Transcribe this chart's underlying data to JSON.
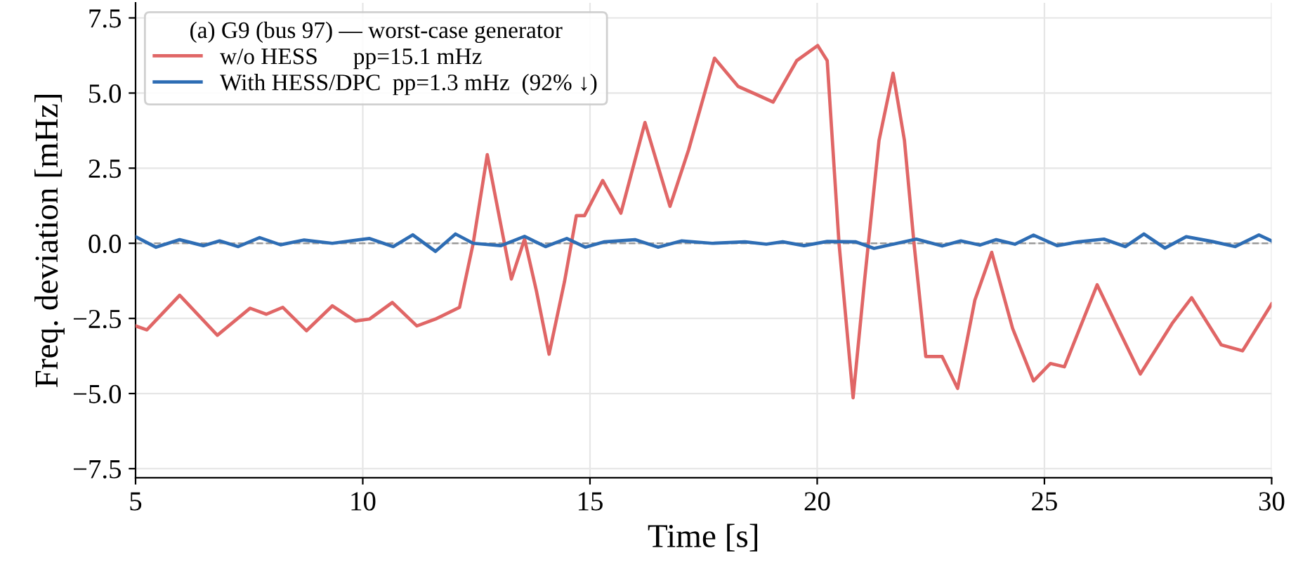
{
  "chart_data": {
    "type": "line",
    "xlabel": "Time [s]",
    "ylabel": "Freq. deviation [mHz]",
    "legend_title": "(a) G9 (bus 97) — worst-case generator",
    "xlim": [
      5,
      30
    ],
    "xticks": [
      5,
      10,
      15,
      20,
      25,
      30
    ],
    "ylim": [
      -7.8,
      8.0
    ],
    "yticks": [
      {
        "value": -7.5,
        "label": "−7.5"
      },
      {
        "value": -5,
        "label": "−5.0"
      },
      {
        "value": -2.5,
        "label": "−2.5"
      },
      {
        "value": 0,
        "label": "0.0"
      },
      {
        "value": 2.5,
        "label": "2.5"
      },
      {
        "value": 5,
        "label": "5.0"
      },
      {
        "value": 7.5,
        "label": "7.5"
      }
    ],
    "grid": true,
    "legend": "top left",
    "line_style": "solid",
    "marker": "none",
    "ref_lines": [
      {
        "axis": "y",
        "value": 0,
        "label": null,
        "color": "#999999",
        "line_style": "dashed"
      }
    ],
    "series": [
      {
        "name": "w/o HESS      pp=15.1 mHz",
        "color": "#e06666",
        "x": [
          5.0,
          5.25,
          5.97,
          6.8,
          7.52,
          7.88,
          8.24,
          8.76,
          9.33,
          9.84,
          10.15,
          10.65,
          11.19,
          11.6,
          12.13,
          12.43,
          12.74,
          13.04,
          13.27,
          13.56,
          13.82,
          14.1,
          14.44,
          14.7,
          14.88,
          15.28,
          15.68,
          16.21,
          16.76,
          17.17,
          17.74,
          18.26,
          18.62,
          19.03,
          19.55,
          20.01,
          20.22,
          20.48,
          20.79,
          21.04,
          21.36,
          21.67,
          21.92,
          22.13,
          22.39,
          22.75,
          23.09,
          23.47,
          23.84,
          24.3,
          24.76,
          25.13,
          25.44,
          26.16,
          26.62,
          27.11,
          27.81,
          28.24,
          28.89,
          29.36,
          30.0
        ],
        "values": [
          -2.75,
          -2.88,
          -1.73,
          -3.06,
          -2.16,
          -2.36,
          -2.13,
          -2.91,
          -2.08,
          -2.59,
          -2.52,
          -1.97,
          -2.75,
          -2.52,
          -2.13,
          0.0,
          2.95,
          0.6,
          -1.19,
          0.14,
          -1.58,
          -3.69,
          -1.27,
          0.92,
          0.92,
          2.09,
          1.0,
          4.02,
          1.23,
          3.11,
          6.16,
          5.22,
          4.98,
          4.7,
          6.08,
          6.58,
          6.08,
          0.0,
          -5.14,
          -1.27,
          3.42,
          5.66,
          3.42,
          0.0,
          -3.77,
          -3.77,
          -4.83,
          -1.89,
          -0.3,
          -2.83,
          -4.58,
          -4.0,
          -4.11,
          -1.38,
          -2.83,
          -4.35,
          -2.67,
          -1.81,
          -3.38,
          -3.58,
          -2.02
        ]
      },
      {
        "name": "With HESS/DPC  pp=1.3 mHz  (92% ↓)",
        "color": "#2e6db4",
        "x": [
          5.0,
          5.45,
          5.97,
          6.49,
          6.85,
          7.26,
          7.73,
          8.19,
          8.71,
          9.33,
          10.15,
          10.67,
          11.1,
          11.6,
          12.04,
          12.43,
          13.04,
          13.56,
          14.02,
          14.49,
          14.9,
          15.32,
          15.99,
          16.5,
          17.02,
          17.69,
          18.41,
          18.88,
          19.24,
          19.71,
          20.22,
          20.84,
          21.25,
          22.18,
          22.75,
          23.16,
          23.58,
          23.94,
          24.35,
          24.76,
          25.28,
          25.75,
          26.31,
          26.78,
          27.19,
          27.65,
          28.12,
          28.69,
          29.2,
          29.72,
          30.0
        ],
        "values": [
          0.22,
          -0.13,
          0.12,
          -0.08,
          0.08,
          -0.11,
          0.19,
          -0.05,
          0.11,
          0.0,
          0.16,
          -0.11,
          0.28,
          -0.27,
          0.31,
          0.0,
          -0.08,
          0.23,
          -0.11,
          0.16,
          -0.13,
          0.05,
          0.12,
          -0.13,
          0.08,
          0.0,
          0.05,
          -0.03,
          0.05,
          -0.08,
          0.06,
          0.05,
          -0.17,
          0.14,
          -0.09,
          0.08,
          -0.06,
          0.12,
          -0.03,
          0.27,
          -0.08,
          0.05,
          0.14,
          -0.11,
          0.31,
          -0.16,
          0.22,
          0.06,
          -0.11,
          0.28,
          0.08
        ]
      }
    ]
  }
}
